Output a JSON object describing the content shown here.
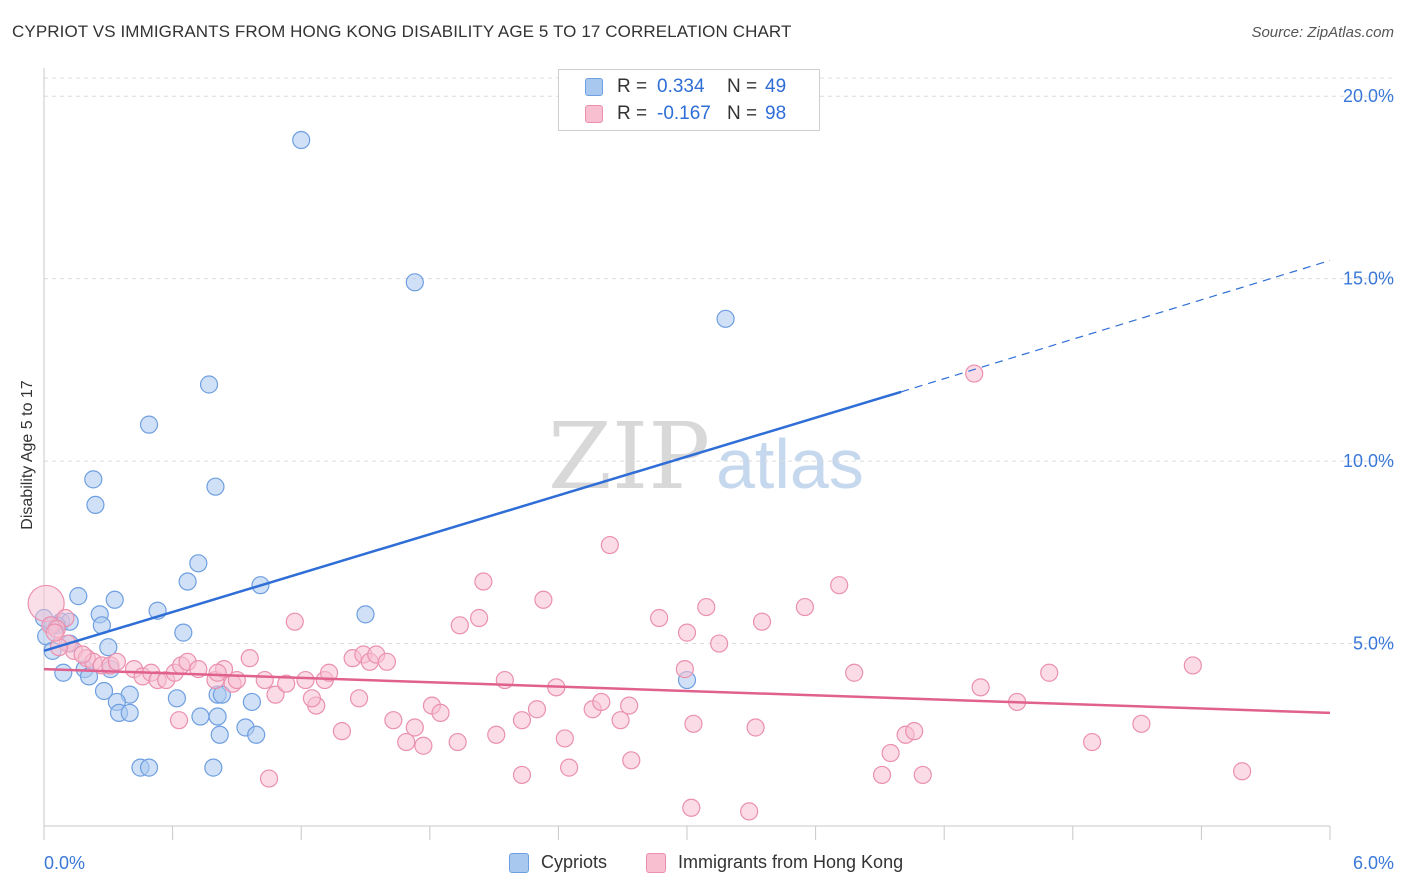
{
  "header": {
    "title": "CYPRIOT VS IMMIGRANTS FROM HONG KONG DISABILITY AGE 5 TO 17 CORRELATION CHART",
    "source": "Source: ZipAtlas.com"
  },
  "watermark": {
    "zip": "ZIP",
    "atlas": "atlas"
  },
  "legend_top": [
    {
      "r_label": "R =",
      "r_value": "0.334",
      "n_label": "N =",
      "n_value": "49",
      "color": "#a9c8f0",
      "border": "#6f9fe0"
    },
    {
      "r_label": "R =",
      "r_value": "-0.167",
      "n_label": "N =",
      "n_value": "98",
      "color": "#f8bfd1",
      "border": "#ea90ae"
    }
  ],
  "legend_bottom": [
    {
      "label": "Cypriots",
      "color": "#a9c8f0",
      "border": "#6f9fe0"
    },
    {
      "label": "Immigrants from Hong Kong",
      "color": "#f8bfd1",
      "border": "#ea90ae"
    }
  ],
  "chart_data": {
    "type": "scatter",
    "title": "CYPRIOT VS IMMIGRANTS FROM HONG KONG DISABILITY AGE 5 TO 17 CORRELATION CHART",
    "xlabel": "",
    "ylabel": "Disability Age 5 to 17",
    "xlim": [
      0,
      6
    ],
    "ylim": [
      0,
      20.5
    ],
    "x_tick_labels": [
      "0.0%",
      "6.0%"
    ],
    "y_ticks": [
      5,
      10,
      15,
      20
    ],
    "y_tick_labels": [
      "5.0%",
      "10.0%",
      "15.0%",
      "20.0%"
    ],
    "grid": true,
    "legend_position": "top-center",
    "colors": {
      "cypriots": "#2f6ed6",
      "hongkong": "#e0608e"
    },
    "series": [
      {
        "name": "Cypriots",
        "color": "#a9c8f0",
        "line_color": "#2f6ed6",
        "trend": {
          "x0": 0,
          "y0": 4.8,
          "x1": 4.0,
          "y1": 11.9,
          "dash_to_x": 6.0,
          "dash_to_y": 15.5
        },
        "points": [
          [
            1.2,
            18.8
          ],
          [
            1.73,
            14.9
          ],
          [
            3.18,
            13.9
          ],
          [
            0.77,
            12.1
          ],
          [
            0.49,
            11.0
          ],
          [
            0.23,
            9.5
          ],
          [
            0.8,
            9.3
          ],
          [
            0.24,
            8.8
          ],
          [
            0.72,
            7.2
          ],
          [
            0.67,
            6.7
          ],
          [
            1.01,
            6.6
          ],
          [
            0.16,
            6.3
          ],
          [
            0.33,
            6.2
          ],
          [
            0.53,
            5.9
          ],
          [
            1.5,
            5.8
          ],
          [
            0.26,
            5.8
          ],
          [
            0.08,
            5.6
          ],
          [
            0.12,
            5.6
          ],
          [
            0.06,
            5.5
          ],
          [
            0.27,
            5.5
          ],
          [
            0.0,
            5.7
          ],
          [
            0.04,
            5.5
          ],
          [
            0.65,
            5.3
          ],
          [
            0.01,
            5.2
          ],
          [
            0.12,
            5.0
          ],
          [
            0.3,
            4.9
          ],
          [
            0.04,
            4.8
          ],
          [
            0.19,
            4.3
          ],
          [
            0.31,
            4.3
          ],
          [
            0.09,
            4.2
          ],
          [
            0.21,
            4.1
          ],
          [
            0.28,
            3.7
          ],
          [
            0.4,
            3.6
          ],
          [
            0.62,
            3.5
          ],
          [
            0.81,
            3.6
          ],
          [
            0.34,
            3.4
          ],
          [
            0.97,
            3.4
          ],
          [
            0.35,
            3.1
          ],
          [
            0.4,
            3.1
          ],
          [
            0.73,
            3.0
          ],
          [
            0.81,
            3.0
          ],
          [
            0.94,
            2.7
          ],
          [
            0.82,
            2.5
          ],
          [
            0.99,
            2.5
          ],
          [
            3.0,
            4.0
          ],
          [
            0.45,
            1.6
          ],
          [
            0.49,
            1.6
          ],
          [
            0.79,
            1.6
          ],
          [
            0.83,
            3.6
          ]
        ]
      },
      {
        "name": "Immigrants from Hong Kong",
        "color": "#f8bfd1",
        "line_color": "#e0608e",
        "trend": {
          "x0": 0,
          "y0": 4.3,
          "x1": 6.0,
          "y1": 3.1
        },
        "points": [
          [
            0.01,
            6.1
          ],
          [
            0.1,
            5.7
          ],
          [
            0.03,
            5.5
          ],
          [
            0.06,
            5.4
          ],
          [
            0.11,
            5.0
          ],
          [
            0.14,
            4.8
          ],
          [
            0.07,
            4.9
          ],
          [
            0.2,
            4.6
          ],
          [
            0.23,
            4.5
          ],
          [
            0.27,
            4.4
          ],
          [
            0.31,
            4.4
          ],
          [
            0.34,
            4.5
          ],
          [
            0.42,
            4.3
          ],
          [
            0.46,
            4.1
          ],
          [
            0.5,
            4.2
          ],
          [
            0.53,
            4.0
          ],
          [
            0.57,
            4.0
          ],
          [
            0.61,
            4.2
          ],
          [
            0.64,
            4.4
          ],
          [
            0.67,
            4.5
          ],
          [
            0.72,
            4.3
          ],
          [
            0.8,
            4.0
          ],
          [
            0.84,
            4.3
          ],
          [
            0.88,
            3.9
          ],
          [
            0.9,
            4.0
          ],
          [
            0.96,
            4.6
          ],
          [
            1.03,
            4.0
          ],
          [
            1.08,
            3.6
          ],
          [
            1.13,
            3.9
          ],
          [
            1.17,
            5.6
          ],
          [
            1.22,
            4.0
          ],
          [
            1.27,
            3.3
          ],
          [
            1.31,
            4.0
          ],
          [
            1.33,
            4.2
          ],
          [
            1.39,
            2.6
          ],
          [
            1.44,
            4.6
          ],
          [
            1.49,
            4.7
          ],
          [
            1.52,
            4.5
          ],
          [
            1.55,
            4.7
          ],
          [
            1.6,
            4.5
          ],
          [
            1.63,
            2.9
          ],
          [
            1.69,
            2.3
          ],
          [
            1.73,
            2.7
          ],
          [
            1.77,
            2.2
          ],
          [
            1.81,
            3.3
          ],
          [
            1.85,
            3.1
          ],
          [
            1.93,
            2.3
          ],
          [
            1.94,
            5.5
          ],
          [
            2.03,
            5.7
          ],
          [
            2.05,
            6.7
          ],
          [
            2.15,
            4.0
          ],
          [
            2.11,
            2.5
          ],
          [
            2.23,
            2.9
          ],
          [
            2.3,
            3.2
          ],
          [
            2.33,
            6.2
          ],
          [
            2.39,
            3.8
          ],
          [
            2.43,
            2.4
          ],
          [
            2.45,
            1.6
          ],
          [
            2.56,
            3.2
          ],
          [
            2.6,
            3.4
          ],
          [
            2.64,
            7.7
          ],
          [
            2.69,
            2.9
          ],
          [
            2.73,
            3.3
          ],
          [
            2.74,
            1.8
          ],
          [
            2.87,
            5.7
          ],
          [
            2.99,
            4.3
          ],
          [
            3.03,
            2.8
          ],
          [
            3.0,
            5.3
          ],
          [
            3.09,
            6.0
          ],
          [
            3.15,
            5.0
          ],
          [
            3.35,
            5.6
          ],
          [
            3.32,
            2.7
          ],
          [
            3.55,
            6.0
          ],
          [
            3.71,
            6.6
          ],
          [
            3.78,
            4.2
          ],
          [
            3.95,
            2.0
          ],
          [
            3.91,
            1.4
          ],
          [
            4.02,
            2.5
          ],
          [
            4.06,
            2.6
          ],
          [
            4.1,
            1.4
          ],
          [
            4.34,
            12.4
          ],
          [
            4.37,
            3.8
          ],
          [
            4.54,
            3.4
          ],
          [
            4.69,
            4.2
          ],
          [
            4.89,
            2.3
          ],
          [
            5.12,
            2.8
          ],
          [
            5.36,
            4.4
          ],
          [
            5.59,
            1.5
          ],
          [
            3.02,
            0.5
          ],
          [
            3.29,
            0.4
          ],
          [
            1.05,
            1.3
          ],
          [
            2.23,
            1.4
          ],
          [
            0.63,
            2.9
          ],
          [
            0.81,
            4.2
          ],
          [
            1.25,
            3.5
          ],
          [
            1.47,
            3.5
          ],
          [
            0.05,
            5.3
          ],
          [
            0.18,
            4.7
          ]
        ]
      }
    ]
  }
}
